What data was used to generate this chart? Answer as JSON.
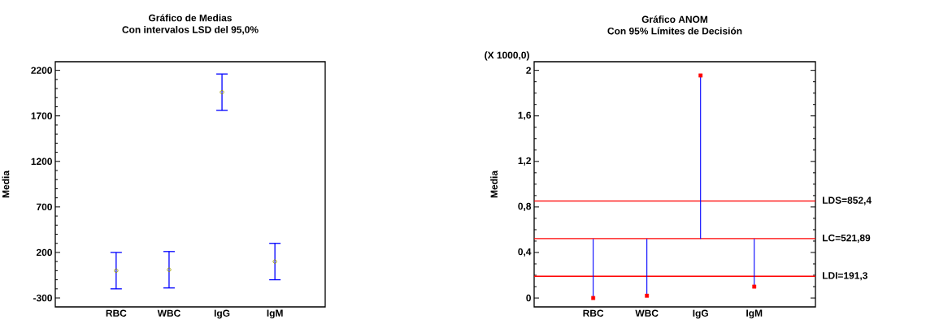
{
  "chart_data": [
    {
      "type": "scatter",
      "title": "Gráfico de Medias",
      "subtitle": "Con intervalos LSD del 95,0%",
      "ylabel": "Media",
      "categories": [
        "RBC",
        "WBC",
        "IgG",
        "IgM"
      ],
      "series": [
        {
          "color": "#999900",
          "values": [
            0,
            10,
            1960,
            100
          ],
          "errors": [
            200,
            200,
            200,
            200
          ]
        }
      ],
      "ylim": [
        -398,
        2295
      ],
      "yticks": [
        -300,
        200,
        700,
        1200,
        1700,
        2200
      ],
      "marker": "circle",
      "grid": false
    },
    {
      "type": "lollipop",
      "title": "Gráfico ANOM",
      "subtitle": "Con 95% Límites de Decisión",
      "ylabel": "Media",
      "categories": [
        "RBC",
        "WBC",
        "IgG",
        "IgM"
      ],
      "series": [
        {
          "color": "#ff0000",
          "values": [
            0.0,
            0.02,
            1.955,
            0.1
          ],
          "errors": [
            [
              0,
              0.52
            ],
            [
              0.02,
              0.52
            ],
            [
              0.52,
              1.955
            ],
            [
              0.1,
              0.52
            ]
          ]
        }
      ],
      "ylim": [
        -0.078,
        2.076
      ],
      "yticks": [
        0,
        {
          "value": 0.4,
          "label": "0,4"
        },
        {
          "value": 0.8,
          "label": "0,8"
        },
        {
          "value": 1.2,
          "label": "1,2"
        },
        {
          "value": 1.6,
          "label": "1,6"
        },
        2
      ],
      "ref_lines": [
        {
          "axis": "y",
          "value": 0.8524,
          "label": "LDS=852,4",
          "color": "#ff0000"
        },
        {
          "axis": "y",
          "value": 0.52189,
          "label": "LC=521,89",
          "color": "#ff0000"
        },
        {
          "axis": "y",
          "value": 0.1913,
          "label": "LDI=191,3",
          "color": "#ff0000"
        }
      ],
      "annotations": [
        "(X 1000,0)"
      ],
      "marker": "square",
      "grid": false
    }
  ]
}
